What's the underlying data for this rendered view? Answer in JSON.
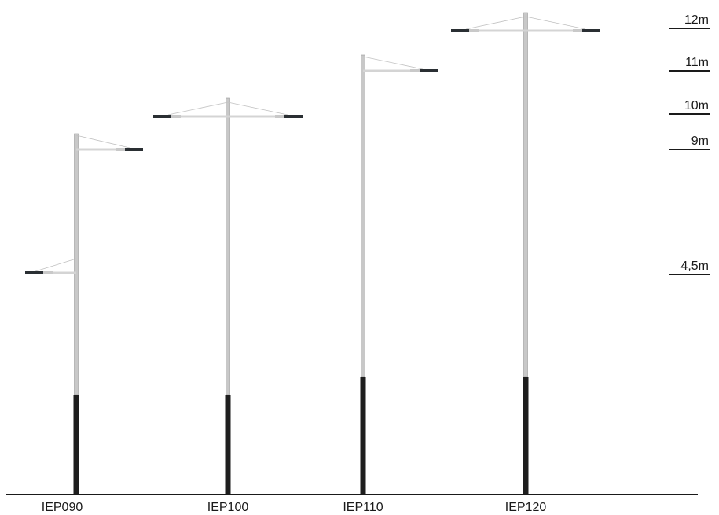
{
  "colors": {
    "pole": "#c8c8c8",
    "pole_edge": "#9a9a9a",
    "base": "#1e1e1e",
    "arm": "#d4d4d4",
    "luminaire": "#2a2f33",
    "luminaire_light": "#c9c9c9",
    "cable": "#c0c0c0",
    "ground": "#1a1a1a",
    "text": "#1a1a1a"
  },
  "height_scale": [
    {
      "label": "12m"
    },
    {
      "label": "11m"
    },
    {
      "label": "10m"
    },
    {
      "label": "9m"
    },
    {
      "label": "4,5m"
    }
  ],
  "poles": [
    {
      "model": "IEP090",
      "height_m": 9,
      "arms": [
        {
          "side": "right",
          "mount_m": 9
        },
        {
          "side": "left",
          "mount_m": 4.5
        }
      ]
    },
    {
      "model": "IEP100",
      "height_m": 10,
      "arms": [
        {
          "side": "both",
          "mount_m": 10
        }
      ]
    },
    {
      "model": "IEP110",
      "height_m": 11,
      "arms": [
        {
          "side": "right",
          "mount_m": 11
        }
      ]
    },
    {
      "model": "IEP120",
      "height_m": 12,
      "arms": [
        {
          "side": "both",
          "mount_m": 12
        }
      ]
    }
  ]
}
